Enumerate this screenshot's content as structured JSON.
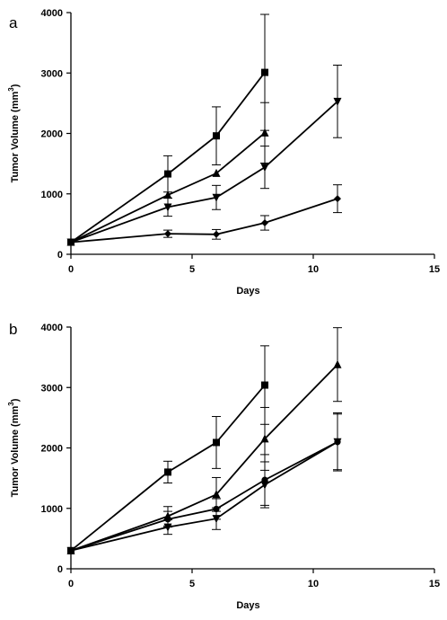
{
  "chart_data": [
    {
      "panel_label": "a",
      "type": "line",
      "xlabel": "Days",
      "ylabel": "Tumor Volume (mm",
      "ylabel_sup": "3",
      "ylabel_end": ")",
      "xlim": [
        0,
        15
      ],
      "ylim": [
        0,
        4000
      ],
      "xticks": [
        0,
        5,
        10,
        15
      ],
      "yticks": [
        0,
        1000,
        2000,
        3000,
        4000
      ],
      "grid": false,
      "series": [
        {
          "marker": "square",
          "x": [
            0,
            4,
            6,
            8
          ],
          "y": [
            200,
            1330,
            1960,
            3010
          ],
          "err": [
            0,
            300,
            480,
            960
          ]
        },
        {
          "marker": "triangle-up",
          "x": [
            0,
            4,
            6,
            8
          ],
          "y": [
            200,
            980,
            1340,
            2010
          ],
          "err": [
            0,
            0,
            0,
            500
          ]
        },
        {
          "marker": "triangle-down",
          "x": [
            0,
            4,
            6,
            8,
            11
          ],
          "y": [
            200,
            780,
            940,
            1440,
            2530
          ],
          "err": [
            0,
            150,
            200,
            350,
            600
          ]
        },
        {
          "marker": "diamond",
          "x": [
            0,
            4,
            6,
            8,
            11
          ],
          "y": [
            200,
            340,
            330,
            520,
            920
          ],
          "err": [
            0,
            60,
            80,
            120,
            230
          ]
        }
      ]
    },
    {
      "panel_label": "b",
      "type": "line",
      "xlabel": "Days",
      "ylabel": "Tumor Volume (mm",
      "ylabel_sup": "3",
      "ylabel_end": ")",
      "xlim": [
        0,
        15
      ],
      "ylim": [
        0,
        4000
      ],
      "xticks": [
        0,
        5,
        10,
        15
      ],
      "yticks": [
        0,
        1000,
        2000,
        3000,
        4000
      ],
      "grid": false,
      "series": [
        {
          "marker": "square",
          "x": [
            0,
            4,
            6,
            8
          ],
          "y": [
            300,
            1600,
            2090,
            3040
          ],
          "err": [
            0,
            180,
            430,
            650
          ]
        },
        {
          "marker": "triangle-up",
          "x": [
            0,
            4,
            6,
            8,
            11
          ],
          "y": [
            300,
            870,
            1230,
            2150,
            3380
          ],
          "err": [
            0,
            160,
            280,
            520,
            610
          ]
        },
        {
          "marker": "circle",
          "x": [
            0,
            4,
            6,
            8,
            11
          ],
          "y": [
            300,
            820,
            990,
            1470,
            2100
          ],
          "err": [
            0,
            130,
            170,
            420,
            480
          ]
        },
        {
          "marker": "triangle-down",
          "x": [
            0,
            4,
            6,
            8,
            11
          ],
          "y": [
            300,
            690,
            830,
            1390,
            2100
          ],
          "err": [
            0,
            120,
            180,
            380,
            460
          ]
        }
      ]
    }
  ]
}
